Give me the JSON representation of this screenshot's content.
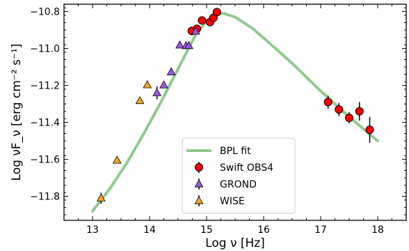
{
  "chart_data": {
    "type": "scatter",
    "xlabel": "Log ν [Hz]",
    "ylabel": "Log νF_ν [erg cm⁻² s⁻¹]",
    "xlim": [
      12.5,
      18.5
    ],
    "ylim": [
      -11.93,
      -10.76
    ],
    "x_ticks": [
      13,
      14,
      15,
      16,
      17,
      18
    ],
    "x_tick_labels": [
      "13",
      "14",
      "15",
      "16",
      "17",
      "18"
    ],
    "y_ticks": [
      -10.8,
      -11.0,
      -11.2,
      -11.4,
      -11.6,
      -11.8
    ],
    "y_tick_labels": [
      "−10.8",
      "−11.0",
      "−11.2",
      "−11.4",
      "−11.6",
      "−11.8"
    ],
    "grid": false,
    "legend_position": "lower-center",
    "series": [
      {
        "name": "BPL fit",
        "kind": "line",
        "color": "#8fcb8f",
        "x": [
          13.0,
          13.3,
          13.6,
          13.9,
          14.2,
          14.5,
          14.8,
          15.0,
          15.2,
          15.3,
          15.5,
          15.8,
          16.1,
          16.5,
          17.0,
          17.5,
          18.0
        ],
        "y": [
          -11.88,
          -11.76,
          -11.62,
          -11.46,
          -11.29,
          -11.11,
          -10.93,
          -10.85,
          -10.815,
          -10.81,
          -10.83,
          -10.89,
          -10.97,
          -11.08,
          -11.23,
          -11.37,
          -11.5
        ]
      },
      {
        "name": "Swift OBS4",
        "kind": "points",
        "marker": "circle",
        "color": "#ff0000",
        "points": [
          {
            "x": 14.74,
            "y": -10.905,
            "err": 0.012
          },
          {
            "x": 14.83,
            "y": -10.893,
            "err": 0.012
          },
          {
            "x": 14.92,
            "y": -10.848,
            "err": 0.012
          },
          {
            "x": 15.06,
            "y": -10.857,
            "err": 0.012
          },
          {
            "x": 15.12,
            "y": -10.834,
            "err": 0.012
          },
          {
            "x": 15.18,
            "y": -10.803,
            "err": 0.012
          },
          {
            "x": 17.13,
            "y": -11.29,
            "err": 0.035
          },
          {
            "x": 17.32,
            "y": -11.33,
            "err": 0.035
          },
          {
            "x": 17.5,
            "y": -11.375,
            "err": 0.03
          },
          {
            "x": 17.68,
            "y": -11.34,
            "err": 0.05
          },
          {
            "x": 17.86,
            "y": -11.44,
            "err": 0.07
          }
        ]
      },
      {
        "name": "GROND",
        "kind": "points",
        "marker": "triangle",
        "color": "#9b59e0",
        "points": [
          {
            "x": 14.13,
            "y": -11.24,
            "err": 0.035
          },
          {
            "x": 14.25,
            "y": -11.198,
            "err": 0.01
          },
          {
            "x": 14.38,
            "y": -11.127,
            "err": 0.01
          },
          {
            "x": 14.53,
            "y": -10.982,
            "err": 0.01
          },
          {
            "x": 14.64,
            "y": -10.985,
            "err": 0.01
          },
          {
            "x": 14.69,
            "y": -10.985,
            "err": 0.01
          },
          {
            "x": 14.81,
            "y": -10.907,
            "err": 0.01
          }
        ]
      },
      {
        "name": "WISE",
        "kind": "points",
        "marker": "triangle",
        "color": "#f5a623",
        "points": [
          {
            "x": 13.15,
            "y": -11.81,
            "err": 0.03
          },
          {
            "x": 13.43,
            "y": -11.605,
            "err": 0.01
          },
          {
            "x": 13.83,
            "y": -11.283,
            "err": 0.01
          },
          {
            "x": 13.96,
            "y": -11.197,
            "err": 0.01
          }
        ]
      }
    ]
  }
}
